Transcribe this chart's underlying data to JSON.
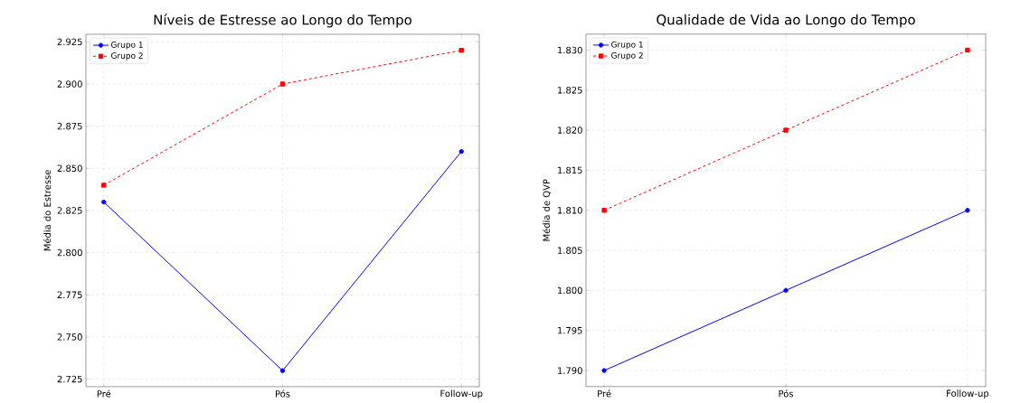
{
  "chart_data": [
    {
      "type": "line",
      "title": "Níveis de Estresse ao Longo do Tempo",
      "ylabel": "Média do Estresse",
      "categories": [
        "Pré",
        "Pós",
        "Follow-up"
      ],
      "series": [
        {
          "name": "Grupo 1",
          "color": "#0000ff",
          "values": [
            2.83,
            2.73,
            2.86
          ],
          "marker": "circle",
          "line_style": "solid"
        },
        {
          "name": "Grupo 2",
          "color": "#ff0000",
          "values": [
            2.84,
            2.9,
            2.92
          ],
          "marker": "square",
          "line_style": "dashed"
        }
      ],
      "ylim": [
        2.7205,
        2.9295
      ],
      "yticks": [
        {
          "value": 2.725,
          "label": "2.725"
        },
        {
          "value": 2.75,
          "label": "2.750"
        },
        {
          "value": 2.775,
          "label": "2.775"
        },
        {
          "value": 2.8,
          "label": "2.800"
        },
        {
          "value": 2.825,
          "label": "2.825"
        },
        {
          "value": 2.85,
          "label": "2.850"
        },
        {
          "value": 2.875,
          "label": "2.875"
        },
        {
          "value": 2.9,
          "label": "2.900"
        },
        {
          "value": 2.925,
          "label": "2.925"
        }
      ],
      "grid": true,
      "legend": "top left"
    },
    {
      "type": "line",
      "title": "Qualidade de Vida ao Longo do Tempo",
      "ylabel": "Média de QVP",
      "categories": [
        "Pré",
        "Pós",
        "Follow-up"
      ],
      "series": [
        {
          "name": "Grupo 1",
          "color": "#0000ff",
          "values": [
            1.79,
            1.8,
            1.81
          ],
          "marker": "circle",
          "line_style": "solid"
        },
        {
          "name": "Grupo 2",
          "color": "#ff0000",
          "values": [
            1.81,
            1.82,
            1.83
          ],
          "marker": "square",
          "line_style": "dashed"
        }
      ],
      "ylim": [
        1.788,
        1.832
      ],
      "yticks": [
        {
          "value": 1.79,
          "label": "1.790"
        },
        {
          "value": 1.795,
          "label": "1.795"
        },
        {
          "value": 1.8,
          "label": "1.800"
        },
        {
          "value": 1.805,
          "label": "1.805"
        },
        {
          "value": 1.81,
          "label": "1.810"
        },
        {
          "value": 1.815,
          "label": "1.815"
        },
        {
          "value": 1.82,
          "label": "1.820"
        },
        {
          "value": 1.825,
          "label": "1.825"
        },
        {
          "value": 1.83,
          "label": "1.830"
        }
      ],
      "grid": true,
      "legend": "top left"
    }
  ]
}
